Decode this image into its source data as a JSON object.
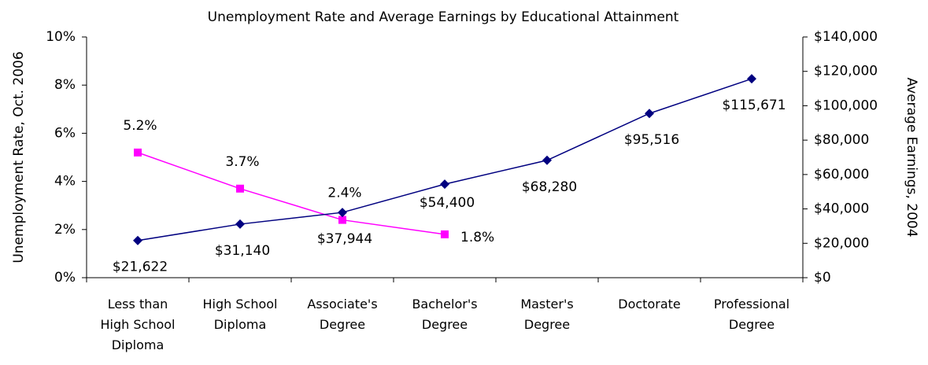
{
  "chart_data": {
    "type": "line",
    "title": "Unemployment Rate and Average Earnings by Educational Attainment",
    "ylabel": "Unemployment Rate, Oct. 2006",
    "y2label": "Average Earnings, 2004",
    "categories": [
      "Less than High School Diploma",
      "High School Diploma",
      "Associate's Degree",
      "Bachelor's Degree",
      "Master's Degree",
      "Doctorate",
      "Professional Degree"
    ],
    "series": [
      {
        "color": "#ff00ff",
        "marker": "square",
        "values": [
          5.2,
          3.7,
          2.4,
          1.8,
          null,
          null,
          null
        ],
        "value_labels": [
          "5.2%",
          "3.7%",
          "2.4%",
          "1.8%",
          null,
          null,
          null
        ]
      },
      {
        "color": "#000080",
        "marker": "diamond",
        "axis": "y2",
        "values": [
          21622,
          31140,
          37944,
          54400,
          68280,
          95516,
          115671
        ],
        "value_labels": [
          "$21,622",
          "$31,140",
          "$37,944",
          "$54,400",
          "$68,280",
          "$95,516",
          "$115,671"
        ]
      }
    ],
    "ylim": [
      0,
      10
    ],
    "yticks": [
      {
        "value": 0,
        "label": "0%"
      },
      {
        "value": 2,
        "label": "2%"
      },
      {
        "value": 4,
        "label": "4%"
      },
      {
        "value": 6,
        "label": "6%"
      },
      {
        "value": 8,
        "label": "8%"
      },
      {
        "value": 10,
        "label": "10%"
      }
    ],
    "y2lim": [
      0,
      140000
    ],
    "y2ticks": [
      {
        "value": 0,
        "label": "$0"
      },
      {
        "value": 20000,
        "label": "$20,000"
      },
      {
        "value": 40000,
        "label": "$40,000"
      },
      {
        "value": 60000,
        "label": "$60,000"
      },
      {
        "value": 80000,
        "label": "$80,000"
      },
      {
        "value": 100000,
        "label": "$100,000"
      },
      {
        "value": 120000,
        "label": "$120,000"
      },
      {
        "value": 140000,
        "label": "$140,000"
      }
    ],
    "grid": false
  }
}
